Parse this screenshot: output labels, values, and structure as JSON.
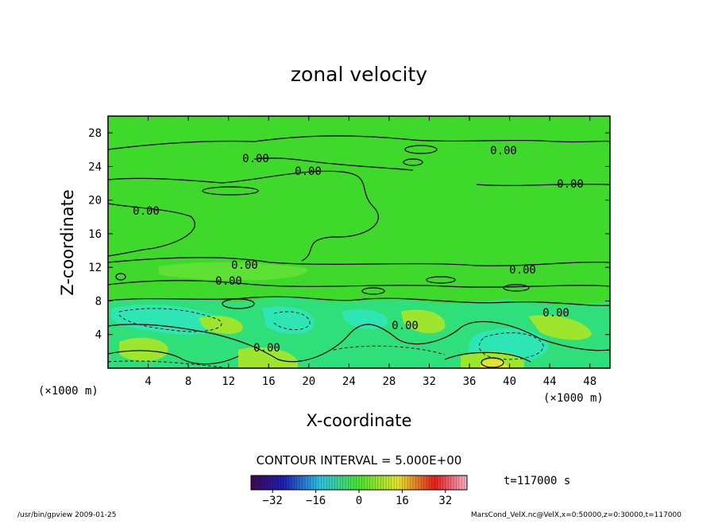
{
  "chart_data": {
    "type": "heatmap",
    "title": "zonal velocity",
    "xlabel": "X-coordinate",
    "ylabel": "Z-coordinate",
    "x_unit_label": "(×1000 m)",
    "z_unit_label": "(×1000 m)",
    "x_ticks": [
      "4",
      "8",
      "12",
      "16",
      "20",
      "24",
      "28",
      "32",
      "36",
      "40",
      "44",
      "48"
    ],
    "y_ticks": [
      "4",
      "8",
      "12",
      "16",
      "20",
      "24",
      "28"
    ],
    "xlim": [
      0,
      50
    ],
    "ylim": [
      0,
      30
    ],
    "contour_interval_text": "CONTOUR INTERVAL = 5.000E+00",
    "contour_labels": [
      "0.00",
      "0.00",
      "0.00",
      "0.00",
      "0.00",
      "0.00",
      "0.00",
      "0.00",
      "0.00",
      "0.00",
      "0.00",
      "0.00"
    ],
    "time_label": "t=117000 s",
    "colorbar": {
      "ticks": [
        "−32",
        "−16",
        "0",
        "16",
        "32"
      ],
      "tick_values": [
        -32,
        -16,
        0,
        16,
        32
      ],
      "range": [
        -40,
        40
      ],
      "colors": [
        "#3c0a50",
        "#1e1eb4",
        "#2ec3e6",
        "#4be62e",
        "#e6e62e",
        "#e61e1e",
        "#f5b4c8"
      ]
    },
    "field_colors": {
      "zero": "#3ed92a",
      "weak_negative": "#2fe07a",
      "negative": "#2ee6b4",
      "positive": "#9ee62e",
      "strong_positive": "#e6e22e"
    }
  },
  "footer": {
    "left": "/usr/bin/gpview  2009-01-25",
    "right": "MarsCond_VelX.nc@VelX,x=0:50000,z=0:30000,t=117000"
  }
}
